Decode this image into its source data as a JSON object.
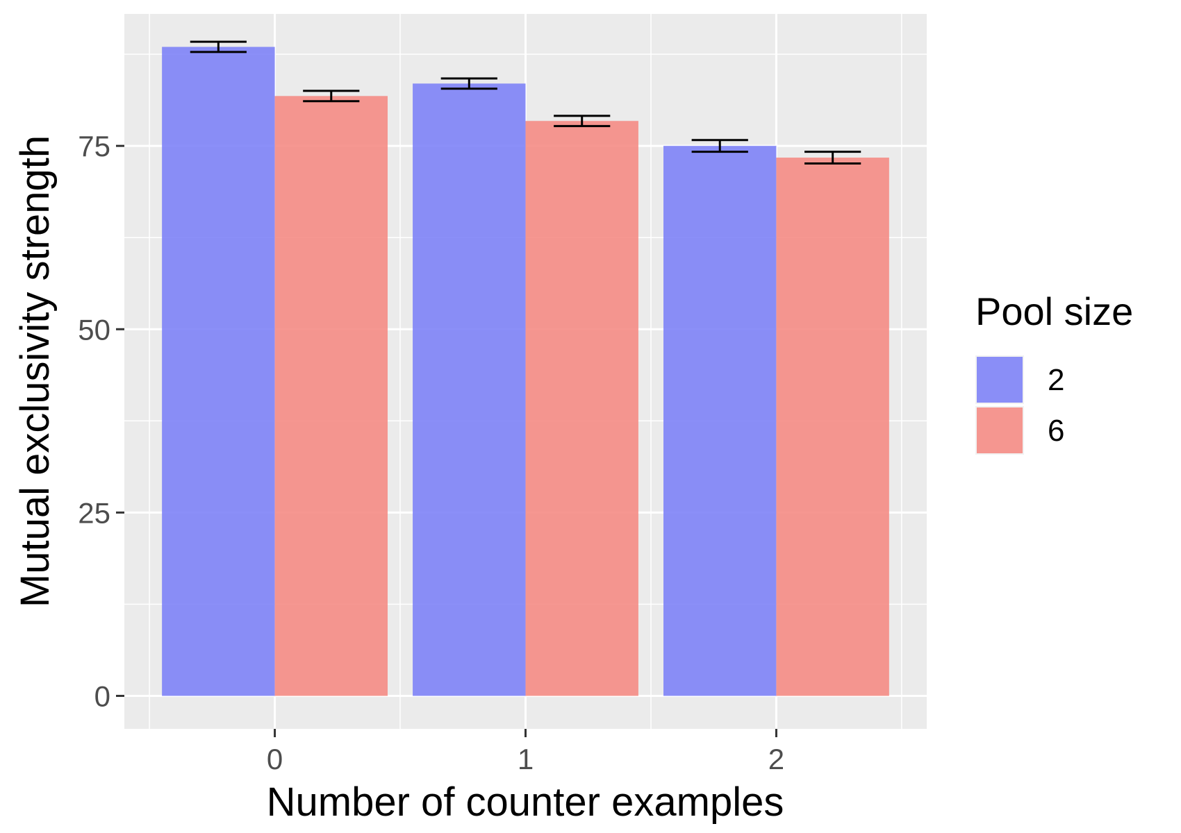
{
  "chart_data": {
    "type": "bar",
    "title": "",
    "xlabel": "Number of counter examples",
    "ylabel": "Mutual exclusivity strength",
    "categories": [
      "0",
      "1",
      "2"
    ],
    "ylim": [
      -4.5,
      93
    ],
    "yticks": [
      0,
      25,
      50,
      75
    ],
    "grid": true,
    "error_bars": true,
    "legend": {
      "title": "Pool size",
      "placement": "right"
    },
    "series": [
      {
        "name": "2",
        "color": "#7B7FF7",
        "values": [
          88.5,
          83.5,
          75.0
        ],
        "error": [
          0.7,
          0.7,
          0.8
        ]
      },
      {
        "name": "6",
        "color": "#F58982",
        "values": [
          81.8,
          78.4,
          73.4
        ],
        "error": [
          0.7,
          0.7,
          0.8
        ]
      }
    ]
  }
}
